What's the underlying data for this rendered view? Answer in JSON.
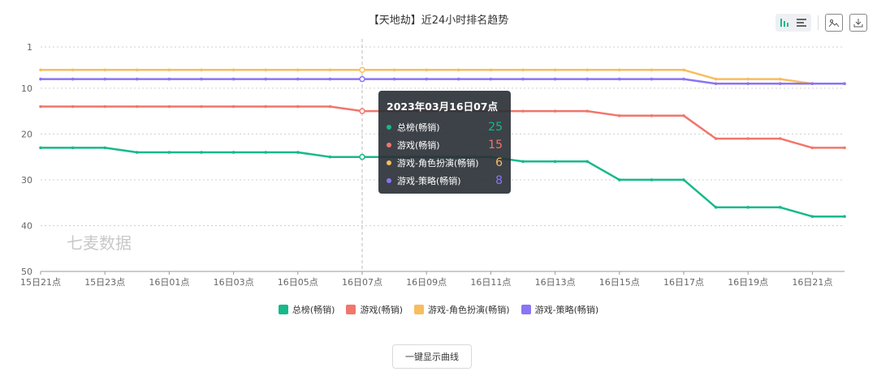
{
  "title": "【天地劫】近24小时排名趋势",
  "toolbar": {
    "icons": [
      "bar-chart-icon",
      "list-icon",
      "image-icon",
      "download-icon"
    ]
  },
  "watermark": "七麦数据",
  "tooltip": {
    "title": "2023年03月16日07点",
    "rows": [
      {
        "name": "总榜(畅销)",
        "value": "25",
        "color": "#16b98a"
      },
      {
        "name": "游戏(畅销)",
        "value": "15",
        "color": "#f1766b"
      },
      {
        "name": "游戏-角色扮演(畅销)",
        "value": "6",
        "color": "#f8bd5f"
      },
      {
        "name": "游戏-策略(畅销)",
        "value": "8",
        "color": "#8b74f5"
      }
    ]
  },
  "show_curve_button": "一键显示曲线",
  "chart_data": {
    "type": "line",
    "x": [
      "15日21点",
      "15日22点",
      "15日23点",
      "16日00点",
      "16日01点",
      "16日02点",
      "16日03点",
      "16日04点",
      "16日05点",
      "16日06点",
      "16日07点",
      "16日08点",
      "16日09点",
      "16日10点",
      "16日11点",
      "16日12点",
      "16日13点",
      "16日14点",
      "16日15点",
      "16日16点",
      "16日17点",
      "16日18点",
      "16日19点",
      "16日20点",
      "16日21点",
      "16日22点"
    ],
    "x_tick_labels": [
      "15日21点",
      "15日23点",
      "16日01点",
      "16日03点",
      "16日05点",
      "16日07点",
      "16日09点",
      "16日11点",
      "16日13点",
      "16日15点",
      "16日17点",
      "16日19点",
      "16日21点"
    ],
    "ylim": [
      1,
      50
    ],
    "y_inverted": true,
    "y_ticks": [
      1,
      10,
      20,
      30,
      40,
      50
    ],
    "grid": true,
    "legend_position": "bottom",
    "highlight_x": "16日07点",
    "series": [
      {
        "name": "总榜(畅销)",
        "color": "#16b98a",
        "values": [
          23,
          23,
          23,
          24,
          24,
          24,
          24,
          24,
          24,
          25,
          25,
          25,
          25,
          25,
          25,
          26,
          26,
          26,
          30,
          30,
          30,
          36,
          36,
          36,
          38,
          38
        ]
      },
      {
        "name": "游戏(畅销)",
        "color": "#f1766b",
        "values": [
          14,
          14,
          14,
          14,
          14,
          14,
          14,
          14,
          14,
          14,
          15,
          15,
          15,
          15,
          15,
          15,
          15,
          15,
          16,
          16,
          16,
          21,
          21,
          21,
          23,
          23
        ]
      },
      {
        "name": "游戏-角色扮演(畅销)",
        "color": "#f8bd5f",
        "values": [
          6,
          6,
          6,
          6,
          6,
          6,
          6,
          6,
          6,
          6,
          6,
          6,
          6,
          6,
          6,
          6,
          6,
          6,
          6,
          6,
          6,
          8,
          8,
          8,
          9,
          9
        ]
      },
      {
        "name": "游戏-策略(畅销)",
        "color": "#8b74f5",
        "values": [
          8,
          8,
          8,
          8,
          8,
          8,
          8,
          8,
          8,
          8,
          8,
          8,
          8,
          8,
          8,
          8,
          8,
          8,
          8,
          8,
          8,
          9,
          9,
          9,
          9,
          9
        ]
      }
    ]
  }
}
